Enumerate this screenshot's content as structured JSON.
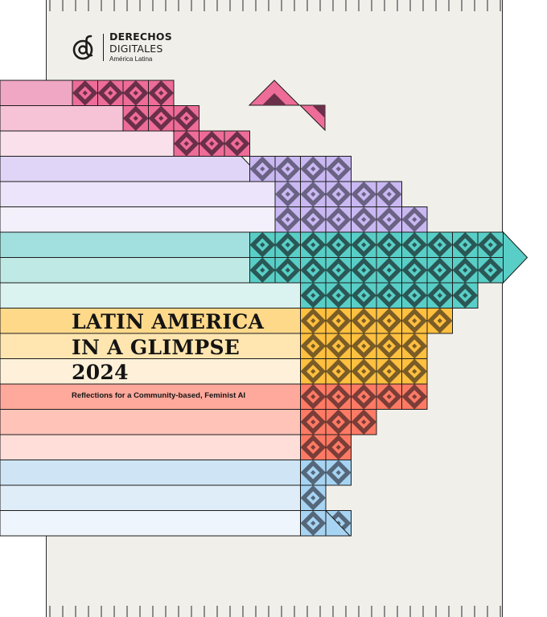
{
  "publisher": {
    "name_line1": "DERECHOS",
    "name_line2": "DIGITALES",
    "region": "América Latina",
    "logo_icon": "at-d-monogram-icon"
  },
  "cover": {
    "title_lines": [
      "LATIN AMERICA",
      "IN A GLIMPSE",
      "2024"
    ],
    "subtitle": "Reflections for a Community-based, Feminist AI"
  },
  "colors": {
    "background": "#f0efea",
    "ink": "#141414",
    "bands": [
      "#f0a7c4",
      "#f6c2d6",
      "#fae0ea",
      "#e0d5f6",
      "#ebe4fa",
      "#f3f0fc",
      "#a2e0df",
      "#bfe9e5",
      "#dbf3f0",
      "#ffd98a",
      "#ffe6b0",
      "#fff1d9",
      "#ffa99c",
      "#ffc3b8",
      "#ffdeda",
      "#cfe5f5",
      "#dfedf8",
      "#eef5fc"
    ],
    "motif_groups": [
      {
        "name": "pink",
        "light": "#ee6c98",
        "dark": "#6a2f49"
      },
      {
        "name": "lavender",
        "light": "#c9b8f2",
        "dark": "#6a6283"
      },
      {
        "name": "teal",
        "light": "#58cec6",
        "dark": "#2a5755"
      },
      {
        "name": "yellow",
        "light": "#ffbf3f",
        "dark": "#7a5c26"
      },
      {
        "name": "coral",
        "light": "#ff7a64",
        "dark": "#7a3d38"
      },
      {
        "name": "sky",
        "light": "#a7d4f2",
        "dark": "#55677a"
      }
    ]
  }
}
